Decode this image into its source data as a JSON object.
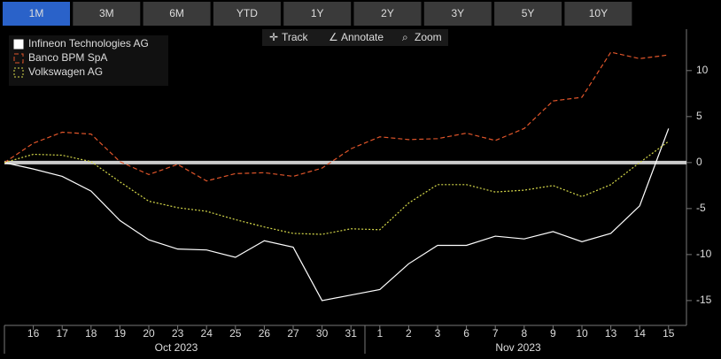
{
  "buttons": [
    "1M",
    "3M",
    "6M",
    "YTD",
    "1Y",
    "2Y",
    "3Y",
    "5Y",
    "10Y"
  ],
  "active_button": 0,
  "toolbar": [
    "Track",
    "Annotate",
    "Zoom"
  ],
  "chart_data": {
    "type": "line",
    "categories": [
      null,
      "16",
      "17",
      "18",
      "19",
      "20",
      "23",
      "24",
      "25",
      "26",
      "27",
      "30",
      "31",
      "1",
      "2",
      "3",
      "6",
      "7",
      "8",
      "9",
      "10",
      "13",
      "14",
      "15"
    ],
    "month_labels": [
      "Oct 2023",
      "Nov 2023"
    ],
    "ylim": [
      -17.7,
      14.5
    ],
    "yticks": [
      -15,
      -10,
      -5,
      0,
      5,
      10
    ],
    "zero_line": true,
    "legend": "top-left",
    "series": [
      {
        "name": "Infineon Technologies AG",
        "color": "#ffffff",
        "style": "solid",
        "values": [
          0,
          -0.7,
          -1.5,
          -3.1,
          -6.3,
          -8.4,
          -9.4,
          -9.5,
          -10.3,
          -8.5,
          -9.2,
          -15,
          -14.4,
          -13.8,
          -11,
          -9,
          -9,
          -8,
          -8.3,
          -7.5,
          -8.6,
          -7.7,
          -4.7,
          3.7
        ]
      },
      {
        "name": "Banco BPM SpA",
        "color": "#e0552a",
        "style": "dashed",
        "values": [
          0,
          2.1,
          3.3,
          3.1,
          0.1,
          -1.3,
          -0.2,
          -2,
          -1.2,
          -1.1,
          -1.5,
          -0.6,
          1.5,
          2.8,
          2.5,
          2.6,
          3.2,
          2.4,
          3.7,
          6.7,
          7.1,
          12,
          11.3,
          11.7
        ]
      },
      {
        "name": "Volkswagen AG",
        "color": "#d6d94a",
        "style": "dotted",
        "values": [
          0,
          0.9,
          0.8,
          0.1,
          -2.1,
          -4.2,
          -4.9,
          -5.3,
          -6.2,
          -7,
          -7.7,
          -7.8,
          -7.2,
          -7.3,
          -4.4,
          -2.4,
          -2.4,
          -3.2,
          -3,
          -2.5,
          -3.7,
          -2.4,
          0,
          2.3
        ]
      }
    ]
  }
}
